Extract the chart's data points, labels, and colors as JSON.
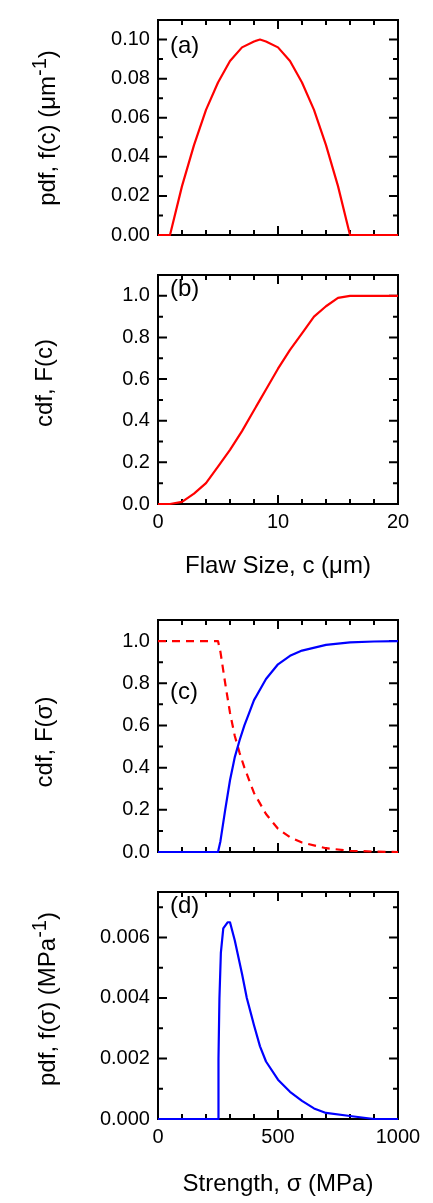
{
  "chart_data": [
    {
      "type": "line",
      "annotations": [
        "(a)"
      ],
      "ylabel": "pdf, f(c) (μm$^{-1}$)",
      "tick_labels": "y",
      "xlim": [
        0,
        20
      ],
      "xticks": [
        0,
        {
          "value": 2,
          "label": null
        },
        {
          "value": 4,
          "label": null
        },
        {
          "value": 6,
          "label": null
        },
        {
          "value": 8,
          "label": null
        },
        10,
        {
          "value": 12,
          "label": null
        },
        {
          "value": 14,
          "label": null
        },
        {
          "value": 16,
          "label": null
        },
        {
          "value": 18,
          "label": null
        },
        20
      ],
      "ylim": [
        0,
        0.11
      ],
      "yticks": [
        {
          "value": 0,
          "label": "0.00"
        },
        {
          "value": 0.01,
          "label": null
        },
        {
          "value": 0.02,
          "label": "0.02"
        },
        {
          "value": 0.03,
          "label": null
        },
        {
          "value": 0.04,
          "label": "0.04"
        },
        {
          "value": 0.05,
          "label": null
        },
        {
          "value": 0.06,
          "label": "0.06"
        },
        {
          "value": 0.07,
          "label": null
        },
        {
          "value": 0.08,
          "label": "0.08"
        },
        {
          "value": 0.09,
          "label": null
        },
        {
          "value": 0.1,
          "label": "0.10"
        }
      ],
      "x": [
        0,
        1,
        2,
        3,
        4,
        5,
        6,
        7,
        8,
        8.5,
        9,
        10,
        11,
        12,
        13,
        14,
        15,
        16,
        20
      ],
      "series": [
        {
          "color": "#ff0000",
          "values": [
            0,
            0,
            0.025,
            0.046,
            0.064,
            0.078,
            0.089,
            0.096,
            0.099,
            0.1,
            0.099,
            0.096,
            0.089,
            0.078,
            0.064,
            0.046,
            0.025,
            0,
            0
          ]
        }
      ]
    },
    {
      "type": "line",
      "annotations": [
        "(b)"
      ],
      "ylabel": "cdf, F(c)",
      "xlabel": "Flaw Size, c (μm)",
      "xlim": [
        0,
        20
      ],
      "xticks": [
        0,
        {
          "value": 2,
          "label": null
        },
        {
          "value": 4,
          "label": null
        },
        {
          "value": 6,
          "label": null
        },
        {
          "value": 8,
          "label": null
        },
        10,
        {
          "value": 12,
          "label": null
        },
        {
          "value": 14,
          "label": null
        },
        {
          "value": 16,
          "label": null
        },
        {
          "value": 18,
          "label": null
        },
        20
      ],
      "ylim": [
        0,
        1.1
      ],
      "yticks": [
        {
          "value": 0,
          "label": "0.0"
        },
        {
          "value": 0.1,
          "label": null
        },
        {
          "value": 0.2,
          "label": "0.2"
        },
        {
          "value": 0.3,
          "label": null
        },
        {
          "value": 0.4,
          "label": "0.4"
        },
        {
          "value": 0.5,
          "label": null
        },
        {
          "value": 0.6,
          "label": "0.6"
        },
        {
          "value": 0.7,
          "label": null
        },
        {
          "value": 0.8,
          "label": "0.8"
        },
        {
          "value": 0.9,
          "label": null
        },
        {
          "value": 1,
          "label": "1.0"
        }
      ],
      "x": [
        0,
        1,
        2,
        3,
        4,
        5,
        6,
        7,
        8,
        8.5,
        9,
        10,
        11,
        12,
        13,
        14,
        15,
        16,
        20
      ],
      "series": [
        {
          "color": "#ff0000",
          "values": [
            0,
            0,
            0.01,
            0.05,
            0.1,
            0.18,
            0.26,
            0.35,
            0.45,
            0.5,
            0.55,
            0.65,
            0.74,
            0.82,
            0.9,
            0.95,
            0.99,
            1,
            1
          ]
        }
      ]
    },
    {
      "type": "line",
      "annotations": [
        "(c)"
      ],
      "ylabel": "cdf, F(σ)",
      "tick_labels": "y",
      "xlim": [
        0,
        1000
      ],
      "xticks": [
        0,
        {
          "value": 100,
          "label": null
        },
        {
          "value": 200,
          "label": null
        },
        {
          "value": 300,
          "label": null
        },
        {
          "value": 400,
          "label": null
        },
        500,
        {
          "value": 600,
          "label": null
        },
        {
          "value": 700,
          "label": null
        },
        {
          "value": 800,
          "label": null
        },
        {
          "value": 900,
          "label": null
        },
        1000
      ],
      "ylim": [
        0,
        1.1
      ],
      "yticks": [
        {
          "value": 0,
          "label": "0.0"
        },
        {
          "value": 0.1,
          "label": null
        },
        {
          "value": 0.2,
          "label": "0.2"
        },
        {
          "value": 0.3,
          "label": null
        },
        {
          "value": 0.4,
          "label": "0.4"
        },
        {
          "value": 0.5,
          "label": null
        },
        {
          "value": 0.6,
          "label": "0.6"
        },
        {
          "value": 0.7,
          "label": null
        },
        {
          "value": 0.8,
          "label": "0.8"
        },
        {
          "value": 0.9,
          "label": null
        },
        {
          "value": 1,
          "label": "1.0"
        }
      ],
      "x": [
        0,
        250,
        260,
        280,
        300,
        320,
        340,
        360,
        380,
        400,
        450,
        500,
        550,
        600,
        700,
        800,
        900,
        1000
      ],
      "series": [
        {
          "color": "#0000ff",
          "values": [
            0,
            0,
            0.05,
            0.2,
            0.34,
            0.45,
            0.53,
            0.6,
            0.66,
            0.72,
            0.82,
            0.89,
            0.93,
            0.955,
            0.982,
            0.994,
            0.998,
            1
          ]
        },
        {
          "color": "#ff0000",
          "line_style": "dashed",
          "values": [
            1,
            1,
            0.95,
            0.8,
            0.66,
            0.55,
            0.47,
            0.4,
            0.34,
            0.28,
            0.18,
            0.11,
            0.07,
            0.045,
            0.018,
            0.006,
            0.002,
            0
          ]
        }
      ]
    },
    {
      "type": "line",
      "annotations": [
        "(d)"
      ],
      "ylabel": "pdf, f(σ) (MPa$^{-1}$)",
      "xlabel": "Strength, σ (MPa)",
      "xlim": [
        0,
        1000
      ],
      "xticks": [
        0,
        {
          "value": 100,
          "label": null
        },
        {
          "value": 200,
          "label": null
        },
        {
          "value": 300,
          "label": null
        },
        {
          "value": 400,
          "label": null
        },
        500,
        {
          "value": 600,
          "label": null
        },
        {
          "value": 700,
          "label": null
        },
        {
          "value": 800,
          "label": null
        },
        {
          "value": 900,
          "label": null
        },
        1000
      ],
      "ylim": [
        0,
        0.0075
      ],
      "yticks": [
        {
          "value": 0,
          "label": "0.000"
        },
        {
          "value": 0.001,
          "label": null
        },
        {
          "value": 0.002,
          "label": "0.002"
        },
        {
          "value": 0.003,
          "label": null
        },
        {
          "value": 0.004,
          "label": "0.004"
        },
        {
          "value": 0.005,
          "label": null
        },
        {
          "value": 0.006,
          "label": "0.006"
        },
        {
          "value": 0.007,
          "label": null
        }
      ],
      "x": [
        0,
        250,
        252,
        256,
        262,
        272,
        290,
        300,
        320,
        350,
        370,
        400,
        425,
        450,
        500,
        550,
        600,
        650,
        700,
        800,
        900,
        1000
      ],
      "series": [
        {
          "color": "#0000ff",
          "values": [
            0,
            0,
            0.002,
            0.004,
            0.0055,
            0.0063,
            0.0065,
            0.0065,
            0.0059,
            0.0048,
            0.004,
            0.0031,
            0.0024,
            0.0019,
            0.0013,
            0.0009,
            0.0006,
            0.00035,
            0.0002,
            0.0001,
            0,
            0
          ]
        }
      ]
    }
  ]
}
